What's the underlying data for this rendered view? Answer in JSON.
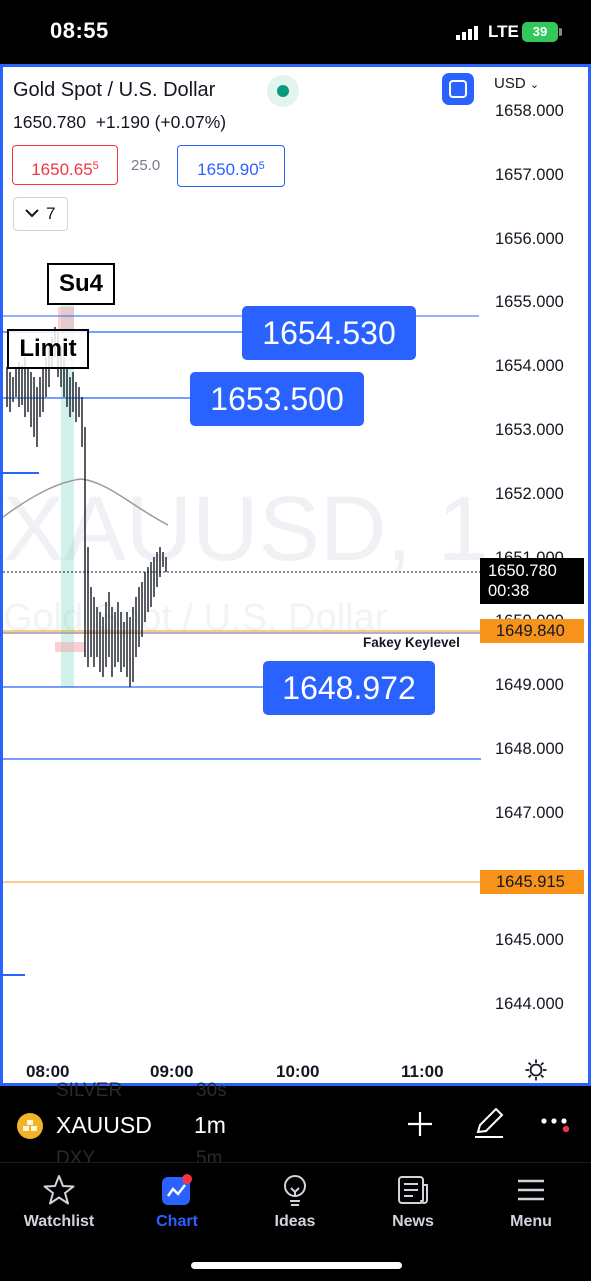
{
  "status_bar": {
    "time": "08:55",
    "network": "LTE",
    "battery": "39"
  },
  "chart": {
    "symbol_title": "Gold Spot / U.S. Dollar",
    "last_price_line": "1650.780  +1.190 (+0.07%)",
    "bid": {
      "main": "1650.65",
      "small": "5"
    },
    "spread": "25.0",
    "ask": {
      "main": "1650.90",
      "small": "5"
    },
    "indicator_count": "7",
    "currency": "USD",
    "watermark_symbol": "XAUUSD, 1",
    "watermark_desc": "Gold Spot / U.S. Dollar",
    "price_axis": [
      "1658.000",
      "1657.000",
      "1656.000",
      "1655.000",
      "1654.000",
      "1653.000",
      "1652.000",
      "1651.000",
      "1650.000",
      "1649.000",
      "1648.000",
      "1647.000",
      "1646.000",
      "1645.000",
      "1644.000"
    ],
    "time_axis": [
      "08:00",
      "09:00",
      "10:00",
      "11:00"
    ],
    "current_price": "1650.780",
    "countdown": "00:38",
    "orange_level_1": "1649.840",
    "orange_level_2": "1645.915",
    "level_label": "Fakey Keylevel",
    "order_labels": [
      "1654.530",
      "1653.500",
      "1648.972"
    ],
    "su4_label": "Su4",
    "limit_label": "Limit"
  },
  "symbol_bar": {
    "symbol": "XAUUSD",
    "interval": "1m",
    "ghost_rows": [
      [
        "SILVER",
        "30s"
      ],
      [
        "DXY",
        "5m"
      ]
    ]
  },
  "tabs": [
    {
      "label": "Watchlist",
      "icon": "star-icon",
      "active": false
    },
    {
      "label": "Chart",
      "icon": "chart-icon",
      "active": true
    },
    {
      "label": "Ideas",
      "icon": "lightbulb-icon",
      "active": false
    },
    {
      "label": "News",
      "icon": "news-icon",
      "active": false
    },
    {
      "label": "Menu",
      "icon": "menu-icon",
      "active": false
    }
  ],
  "colors": {
    "accent": "#2962ff",
    "up": "#089981",
    "down": "#f23645",
    "level": "#f7931a"
  }
}
